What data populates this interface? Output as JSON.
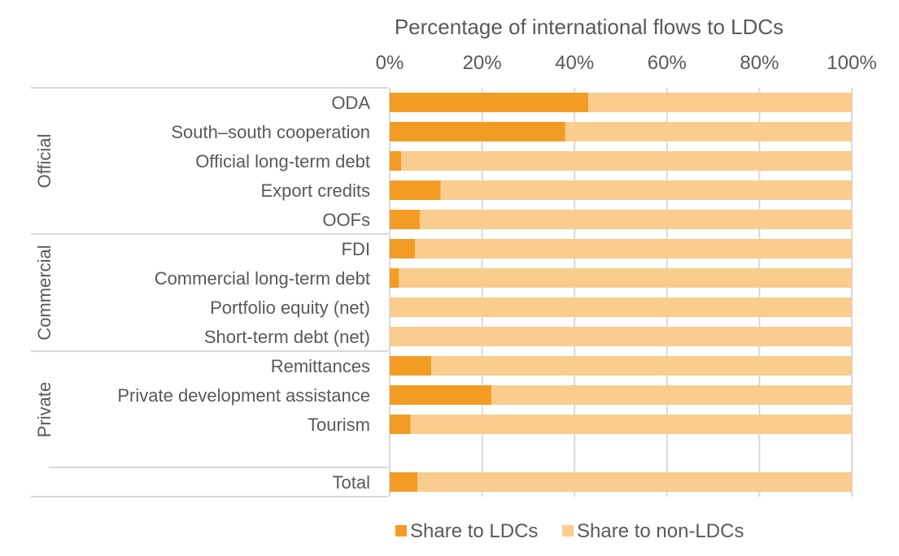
{
  "chart_data": {
    "type": "bar",
    "stacked": true,
    "orientation": "horizontal",
    "title": "Percentage of international flows to LDCs",
    "xlim": [
      0,
      100
    ],
    "x_ticks": [
      "0%",
      "20%",
      "40%",
      "60%",
      "80%",
      "100%"
    ],
    "grid": true,
    "legend_position": "bottom",
    "groups": [
      {
        "name": "Official",
        "categories": [
          "ODA",
          "South–south cooperation",
          "Official long-term debt",
          "Export credits",
          "OOFs"
        ]
      },
      {
        "name": "Commercial",
        "categories": [
          "FDI",
          "Commercial long-term debt",
          "Portfolio equity (net)",
          "Short-term debt (net)"
        ]
      },
      {
        "name": "Private",
        "categories": [
          "Remittances",
          "Private development assistance",
          "Tourism"
        ]
      }
    ],
    "categories": [
      "ODA",
      "South–south cooperation",
      "Official long-term debt",
      "Export credits",
      "OOFs",
      "FDI",
      "Commercial long-term debt",
      "Portfolio equity (net)",
      "Short-term debt (net)",
      "Remittances",
      "Private development assistance",
      "Tourism",
      "Total"
    ],
    "series": [
      {
        "name": "Share to LDCs",
        "color": "#f39c24",
        "values": [
          43,
          38,
          2.5,
          11,
          6.5,
          5.5,
          2,
          0,
          0,
          9,
          22,
          4.5,
          6
        ]
      },
      {
        "name": "Share to non-LDCs",
        "color": "#facc8d",
        "values": [
          57,
          62,
          97.5,
          89,
          93.5,
          94.5,
          98,
          100,
          100,
          91,
          78,
          95.5,
          94
        ]
      }
    ]
  }
}
